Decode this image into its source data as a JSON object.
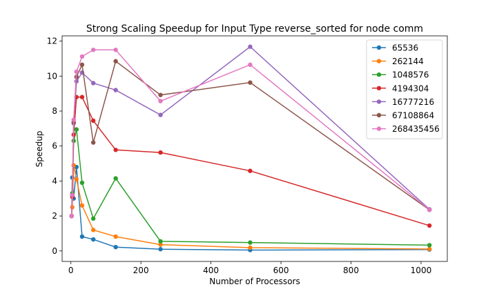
{
  "chart_data": {
    "type": "line",
    "title": "Strong Scaling Speedup for Input Type reverse_sorted for node comm",
    "xlabel": "Number of Processors",
    "ylabel": "Speedup",
    "xlim": [
      -25,
      1075
    ],
    "ylim": [
      -0.6,
      12.3
    ],
    "xticks": [
      0,
      200,
      400,
      600,
      800,
      1000
    ],
    "yticks": [
      0,
      2,
      4,
      6,
      8,
      10,
      12
    ],
    "grid": false,
    "legend_position": "top-right",
    "x": [
      2,
      4,
      8,
      16,
      32,
      64,
      128,
      256,
      512,
      1024
    ],
    "series": [
      {
        "name": "65536",
        "color": "#1f77b4",
        "values": [
          2.0,
          4.2,
          3.0,
          4.8,
          0.82,
          0.66,
          0.22,
          0.1,
          0.05,
          0.08
        ]
      },
      {
        "name": "262144",
        "color": "#ff7f0e",
        "values": [
          2.0,
          2.5,
          4.9,
          4.1,
          2.6,
          1.2,
          0.82,
          0.36,
          0.19,
          0.11
        ]
      },
      {
        "name": "1048576",
        "color": "#2ca02c",
        "values": [
          2.0,
          3.3,
          6.3,
          6.95,
          3.9,
          1.85,
          4.15,
          0.55,
          0.48,
          0.33
        ]
      },
      {
        "name": "4194304",
        "color": "#d62728",
        "values": [
          2.0,
          3.1,
          6.65,
          8.8,
          8.8,
          7.45,
          5.78,
          5.63,
          4.58,
          1.45
        ]
      },
      {
        "name": "16777216",
        "color": "#9467bd",
        "values": [
          2.0,
          3.2,
          7.3,
          9.7,
          10.2,
          9.6,
          9.2,
          7.78,
          11.68,
          2.38
        ]
      },
      {
        "name": "67108864",
        "color": "#8c564b",
        "values": [
          2.0,
          3.2,
          7.35,
          9.95,
          10.65,
          6.2,
          10.85,
          8.92,
          9.63,
          2.35
        ]
      },
      {
        "name": "268435456",
        "color": "#e377c2",
        "values": [
          2.0,
          3.2,
          7.5,
          10.25,
          11.12,
          11.5,
          11.5,
          8.57,
          10.65,
          2.35
        ]
      }
    ]
  }
}
